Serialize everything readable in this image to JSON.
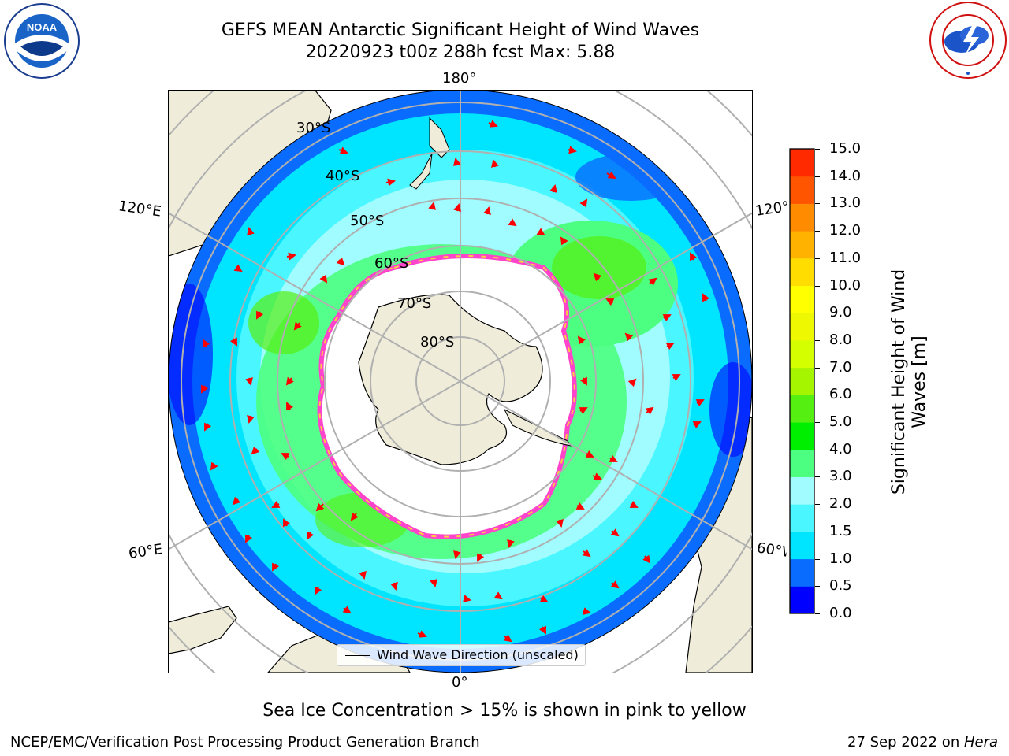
{
  "title_line1": "GEFS MEAN Antarctic Significant Height of Wind Waves",
  "title_line2": "20220923 t00z 288h fcst   Max: 5.88",
  "footnote": "Sea Ice Concentration > 15% is shown in pink to yellow",
  "credit_left": "NCEP/EMC/Verification Post Processing Product Generation Branch",
  "credit_date": "27 Sep 2022 on ",
  "credit_machine": "Hera",
  "logos": {
    "noaa": {
      "text": "NOAA",
      "ring": "NATIONAL OCEANIC AND ATMOSPHERIC ADMINISTRATION · U.S. DEPARTMENT OF COMMERCE"
    },
    "nws": {
      "ring": "NATIONAL WEATHER SERVICE"
    }
  },
  "map": {
    "lon_labels": {
      "top": "180°",
      "bottom": "0°",
      "left_upper": "120°E",
      "left_lower": "60°E",
      "right_upper": "120°W",
      "right_lower": "60°W"
    },
    "lat_labels": [
      "30°S",
      "40°S",
      "50°S",
      "60°S",
      "70°S",
      "80°S"
    ],
    "legend_label": "Wind Wave Direction (unscaled)",
    "colors": {
      "land": "#efedd9",
      "ice_pink": "#ff44cc",
      "ice_yellow": "#ffcc44",
      "arrow": "#ff0000",
      "grid": "#b0b0b0"
    }
  },
  "colorbar": {
    "label_line1": "Significant Height of Wind",
    "label_line2": "Waves [m]",
    "ticks": [
      "0.0",
      "0.5",
      "1.0",
      "1.5",
      "2.0",
      "3.0",
      "4.0",
      "5.0",
      "6.0",
      "7.0",
      "8.0",
      "9.0",
      "10.0",
      "11.0",
      "12.0",
      "13.0",
      "14.0",
      "15.0"
    ],
    "colors": [
      "#0000ff",
      "#0a6cff",
      "#00e5ff",
      "#4af6ff",
      "#a0fcff",
      "#4cff80",
      "#00ee00",
      "#55f011",
      "#a6f500",
      "#d4ff00",
      "#eef800",
      "#ffff00",
      "#ffdd00",
      "#ffb200",
      "#ff8c00",
      "#ff5500",
      "#ff2a00"
    ]
  }
}
